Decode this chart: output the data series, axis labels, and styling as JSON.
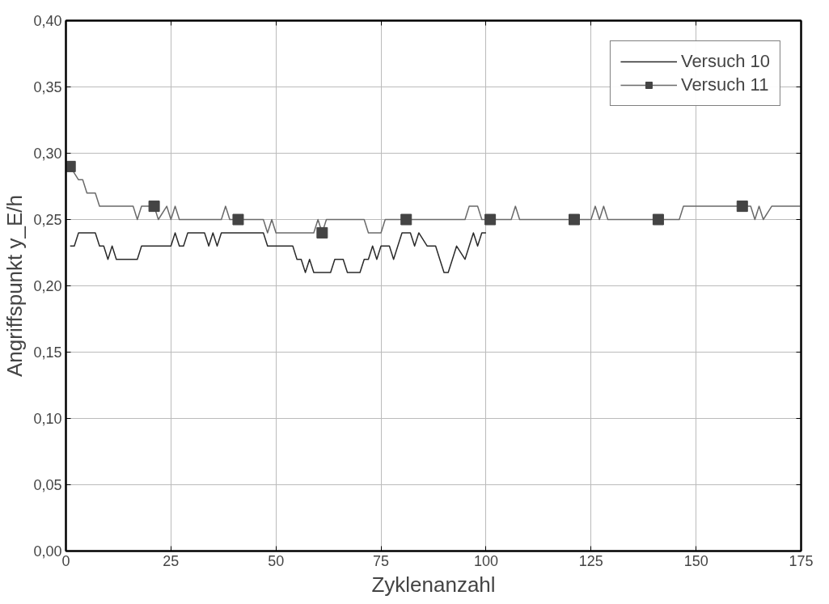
{
  "chart_data": {
    "type": "line",
    "xlabel": "Zyklenanzahl",
    "ylabel": "Angriffspunkt y_E/h",
    "xlim": [
      0,
      175
    ],
    "ylim": [
      0,
      0.4
    ],
    "xticks": [
      0,
      25,
      50,
      75,
      100,
      125,
      150,
      175
    ],
    "yticks": [
      {
        "value": 0,
        "label": "0,00"
      },
      {
        "value": 0.05,
        "label": "0,05"
      },
      {
        "value": 0.1,
        "label": "0,10"
      },
      {
        "value": 0.15,
        "label": "0,15"
      },
      {
        "value": 0.2,
        "label": "0,20"
      },
      {
        "value": 0.25,
        "label": "0,25"
      },
      {
        "value": 0.3,
        "label": "0,30"
      },
      {
        "value": 0.35,
        "label": "0,35"
      },
      {
        "value": 0.4,
        "label": "0,40"
      }
    ],
    "grid": true,
    "legend": "top right",
    "line_style": "solid",
    "series": [
      {
        "name": "Versuch 10",
        "color": "#2a2a2a",
        "marker": "none",
        "x": [
          1,
          2,
          3,
          7,
          8,
          9,
          10,
          11,
          12,
          17,
          18,
          25,
          26,
          27,
          28,
          29,
          33,
          34,
          35,
          36,
          37,
          47,
          48,
          54,
          55,
          56,
          57,
          58,
          59,
          63,
          64,
          66,
          67,
          70,
          71,
          72,
          73,
          74,
          75,
          77,
          78,
          79,
          80,
          82,
          83,
          84,
          86,
          88,
          89,
          90,
          91,
          92,
          93,
          95,
          96,
          97,
          98,
          99,
          100
        ],
        "values": [
          0.23,
          0.23,
          0.24,
          0.24,
          0.23,
          0.23,
          0.22,
          0.23,
          0.22,
          0.22,
          0.23,
          0.23,
          0.24,
          0.23,
          0.23,
          0.24,
          0.24,
          0.23,
          0.24,
          0.23,
          0.24,
          0.24,
          0.23,
          0.23,
          0.22,
          0.22,
          0.21,
          0.22,
          0.21,
          0.21,
          0.22,
          0.22,
          0.21,
          0.21,
          0.22,
          0.22,
          0.23,
          0.22,
          0.23,
          0.23,
          0.22,
          0.23,
          0.24,
          0.24,
          0.23,
          0.24,
          0.23,
          0.23,
          0.22,
          0.21,
          0.21,
          0.22,
          0.23,
          0.22,
          0.23,
          0.24,
          0.23,
          0.24,
          0.24
        ]
      },
      {
        "color": "#6a6a6a",
        "marker": "none",
        "x": [
          1,
          3,
          4,
          5,
          7,
          8,
          16,
          17,
          18,
          21,
          22,
          24,
          25,
          26,
          27,
          37,
          38,
          39,
          47,
          48,
          49,
          50,
          59,
          60,
          61,
          62,
          71,
          72,
          75,
          76,
          95,
          96,
          98,
          99,
          106,
          107,
          108,
          125,
          126,
          127,
          128,
          129,
          146,
          147,
          163,
          164,
          165,
          166,
          168,
          175
        ],
        "values": [
          0.29,
          0.28,
          0.28,
          0.27,
          0.27,
          0.26,
          0.26,
          0.25,
          0.26,
          0.26,
          0.25,
          0.26,
          0.25,
          0.26,
          0.25,
          0.25,
          0.26,
          0.25,
          0.25,
          0.24,
          0.25,
          0.24,
          0.24,
          0.25,
          0.24,
          0.25,
          0.25,
          0.24,
          0.24,
          0.25,
          0.25,
          0.26,
          0.26,
          0.25,
          0.25,
          0.26,
          0.25,
          0.25,
          0.26,
          0.25,
          0.26,
          0.25,
          0.25,
          0.26,
          0.26,
          0.25,
          0.26,
          0.25,
          0.26,
          0.26
        ]
      },
      {
        "name": "Versuch 11",
        "color": "#444444",
        "type": "scatter",
        "marker": "square",
        "x": [
          1,
          21,
          41,
          61,
          81,
          101,
          121,
          141,
          161
        ],
        "values": [
          0.29,
          0.26,
          0.25,
          0.24,
          0.25,
          0.25,
          0.25,
          0.25,
          0.26
        ]
      }
    ]
  }
}
